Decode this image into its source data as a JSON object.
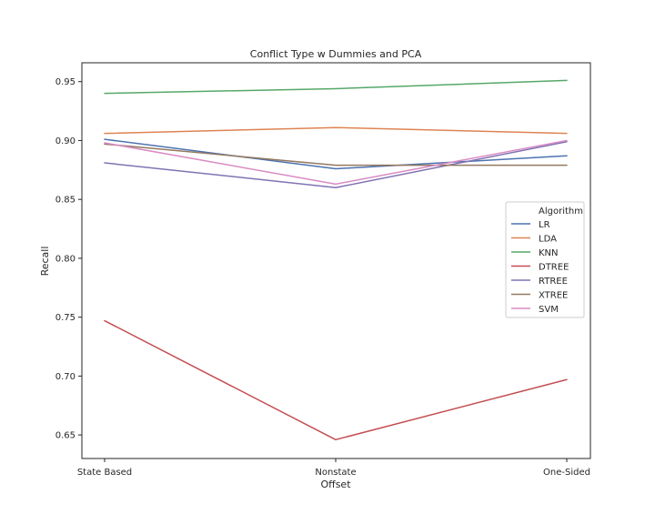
{
  "chart_data": {
    "type": "line",
    "title": "Conflict Type w Dummies and PCA",
    "xlabel": "Offset",
    "ylabel": "Recall",
    "categories": [
      "State Based",
      "Nonstate",
      "One-Sided"
    ],
    "ylim": [
      0.63,
      0.966
    ],
    "yticks": [
      0.65,
      0.7,
      0.75,
      0.8,
      0.85,
      0.9,
      0.95
    ],
    "ytick_labels": [
      "0.65",
      "0.70",
      "0.75",
      "0.80",
      "0.85",
      "0.90",
      "0.95"
    ],
    "grid": false,
    "legend": {
      "title": "Algorithm",
      "placement": "center-right"
    },
    "series": [
      {
        "name": "LR",
        "color": "#4c72b0",
        "values": [
          0.901,
          0.876,
          0.887
        ]
      },
      {
        "name": "LDA",
        "color": "#dd8452",
        "values": [
          0.906,
          0.911,
          0.906
        ]
      },
      {
        "name": "KNN",
        "color": "#55a868",
        "values": [
          0.94,
          0.944,
          0.951
        ]
      },
      {
        "name": "DTREE",
        "color": "#c44e52",
        "values": [
          0.747,
          0.646,
          0.697
        ]
      },
      {
        "name": "RTREE",
        "color": "#8172b3",
        "values": [
          0.881,
          0.86,
          0.899
        ]
      },
      {
        "name": "XTREE",
        "color": "#937860",
        "values": [
          0.897,
          0.879,
          0.879
        ]
      },
      {
        "name": "SVM",
        "color": "#da8bc3",
        "values": [
          0.898,
          0.863,
          0.9
        ]
      }
    ]
  }
}
